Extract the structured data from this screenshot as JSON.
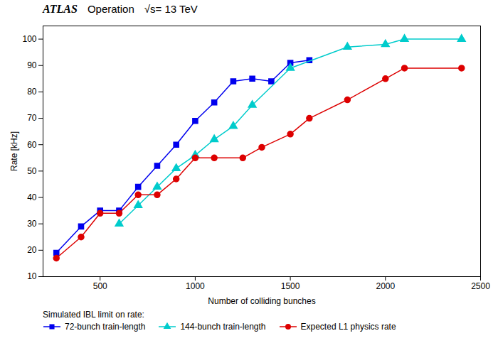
{
  "chart_data": {
    "type": "line",
    "xlabel": "Number of colliding bunches",
    "ylabel": "Rate [kHz]",
    "annotations": [
      "ATLAS",
      "Operation",
      "√s= 13 TeV"
    ],
    "legend_title": "Simulated IBL limit on rate:",
    "xlim": [
      200,
      2500
    ],
    "ylim": [
      10,
      105
    ],
    "xticks": [
      500,
      1000,
      1500,
      2000,
      2500
    ],
    "yticks": [
      10,
      20,
      30,
      40,
      50,
      60,
      70,
      80,
      90,
      100
    ],
    "grid": false,
    "series": [
      {
        "name": "72-bunch train-length",
        "color": "#0000EE",
        "marker": "square",
        "x": [
          270,
          400,
          500,
          600,
          700,
          800,
          900,
          1000,
          1100,
          1200,
          1300,
          1400,
          1500,
          1600
        ],
        "values": [
          19,
          29,
          35,
          35,
          44,
          52,
          60,
          69,
          76,
          84,
          85,
          84,
          91,
          92
        ]
      },
      {
        "name": "144-bunch train-length",
        "color": "#00CCCC",
        "marker": "triangle",
        "x": [
          600,
          700,
          800,
          900,
          1000,
          1100,
          1200,
          1300,
          1500,
          1800,
          2000,
          2100,
          2400
        ],
        "values": [
          30,
          37,
          44,
          51,
          56,
          62,
          67,
          75,
          89,
          97,
          98,
          100,
          100
        ]
      },
      {
        "name": "Expected L1 physics rate",
        "color": "#DD0000",
        "marker": "circle",
        "x": [
          270,
          400,
          500,
          600,
          700,
          800,
          900,
          1000,
          1100,
          1250,
          1350,
          1500,
          1600,
          1800,
          2000,
          2100,
          2400
        ],
        "values": [
          17,
          25,
          34,
          34,
          41,
          41,
          47,
          55,
          55,
          55,
          59,
          64,
          70,
          77,
          85,
          89,
          89
        ]
      }
    ]
  }
}
